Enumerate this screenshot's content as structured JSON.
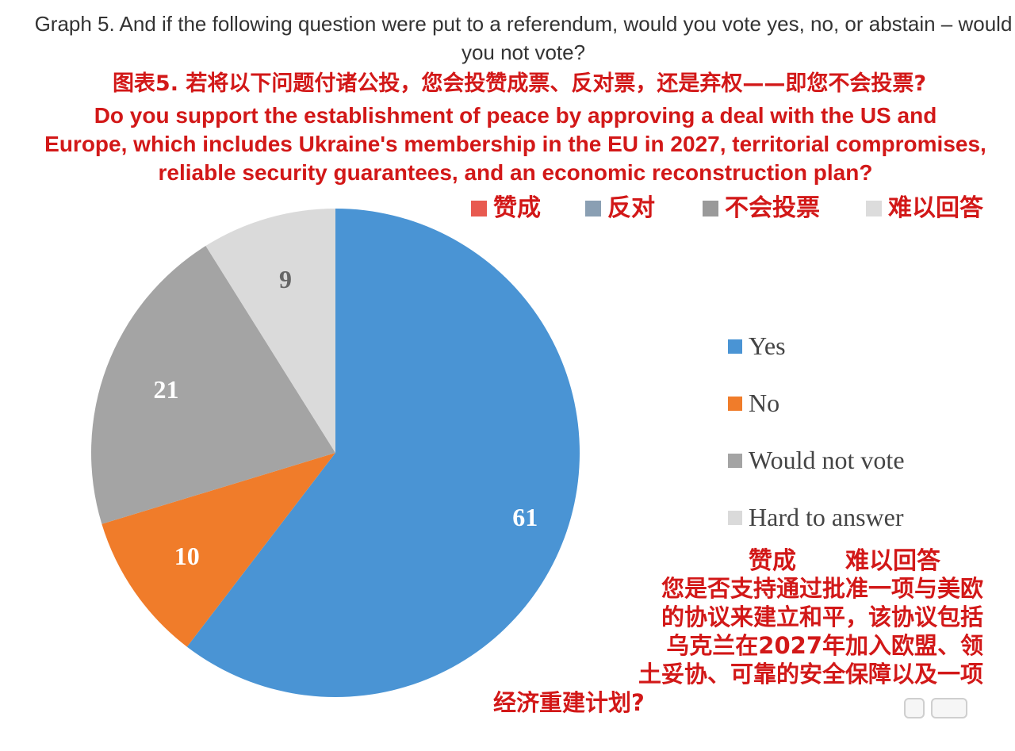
{
  "header": {
    "title_en": "Graph 5. And if the following question were put to a referendum, would you vote yes, no, or abstain – would you not vote?",
    "title_zh": "图表5. 若将以下问题付诸公投，您会投赞成票、反对票，还是弃权——即您不会投票?",
    "question_en_lines": [
      "Do you support the establishment of peace by approving a deal with the US and",
      "Europe, which includes Ukraine's membership in the EU in 2027, territorial compromises,",
      "reliable security guarantees, and an economic reconstruction plan?"
    ]
  },
  "legend_zh": [
    {
      "label": "赞成",
      "color": "#e85a50"
    },
    {
      "label": "反对",
      "color": "#8a9fb3"
    },
    {
      "label": "不会投票",
      "color": "#9a9a9a"
    },
    {
      "label": "难以回答",
      "color": "#dcdcdc"
    }
  ],
  "annotations_zh": {
    "tag_yes": "赞成",
    "tag_hard": "难以回答",
    "question_lines": [
      "您是否支持通过批准一项与美欧",
      "的协议来建立和平，该协议包括",
      "乌克兰在2027年加入欧盟、领",
      "土妥协、可靠的安全保障以及一项",
      "经济重建计划?"
    ]
  },
  "chart_data": {
    "type": "pie",
    "slices": [
      {
        "label": "Yes",
        "value": 61,
        "color": "#4a94d4"
      },
      {
        "label": "No",
        "value": 10,
        "color": "#f07c2a"
      },
      {
        "label": "Would not vote",
        "value": 21,
        "color": "#a4a4a4"
      },
      {
        "label": "Hard to answer",
        "value": 9,
        "color": "#dadada"
      }
    ],
    "start_angle_deg": 0,
    "direction": "clockwise",
    "legend_position": "right"
  }
}
